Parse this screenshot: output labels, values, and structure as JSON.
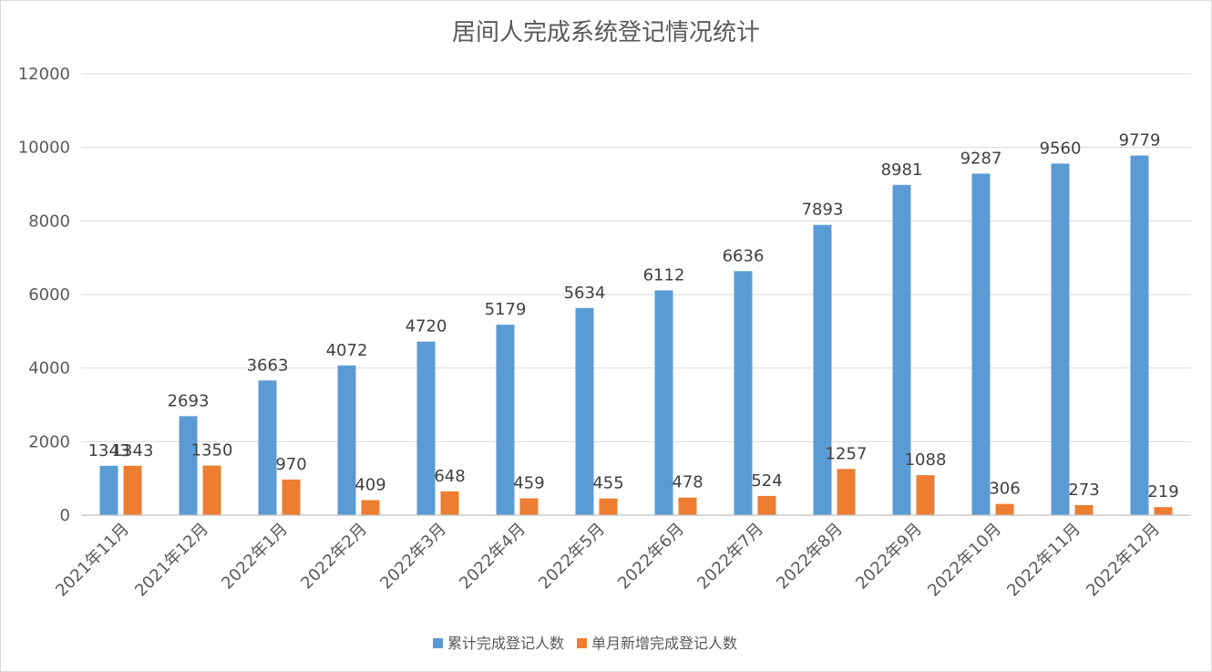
{
  "chart_data": {
    "type": "bar",
    "title": "居间人完成系统登记情况统计",
    "xlabel": "",
    "ylabel": "",
    "ylim": [
      0,
      12000
    ],
    "yticks": [
      0,
      2000,
      4000,
      6000,
      8000,
      10000,
      12000
    ],
    "grid": true,
    "legend_position": "bottom",
    "categories": [
      "2021年11月",
      "2021年12月",
      "2022年1月",
      "2022年2月",
      "2022年3月",
      "2022年4月",
      "2022年5月",
      "2022年6月",
      "2022年7月",
      "2022年8月",
      "2022年9月",
      "2022年10月",
      "2022年11月",
      "2022年12月"
    ],
    "series": [
      {
        "name": "累计完成登记人数",
        "color": "#5b9bd5",
        "values": [
          1343,
          2693,
          3663,
          4072,
          4720,
          5179,
          5634,
          6112,
          6636,
          7893,
          8981,
          9287,
          9560,
          9779
        ]
      },
      {
        "name": "单月新增完成登记人数",
        "color": "#ed7d31",
        "values": [
          1343,
          1350,
          970,
          409,
          648,
          459,
          455,
          478,
          524,
          1257,
          1088,
          306,
          273,
          219
        ]
      }
    ]
  }
}
